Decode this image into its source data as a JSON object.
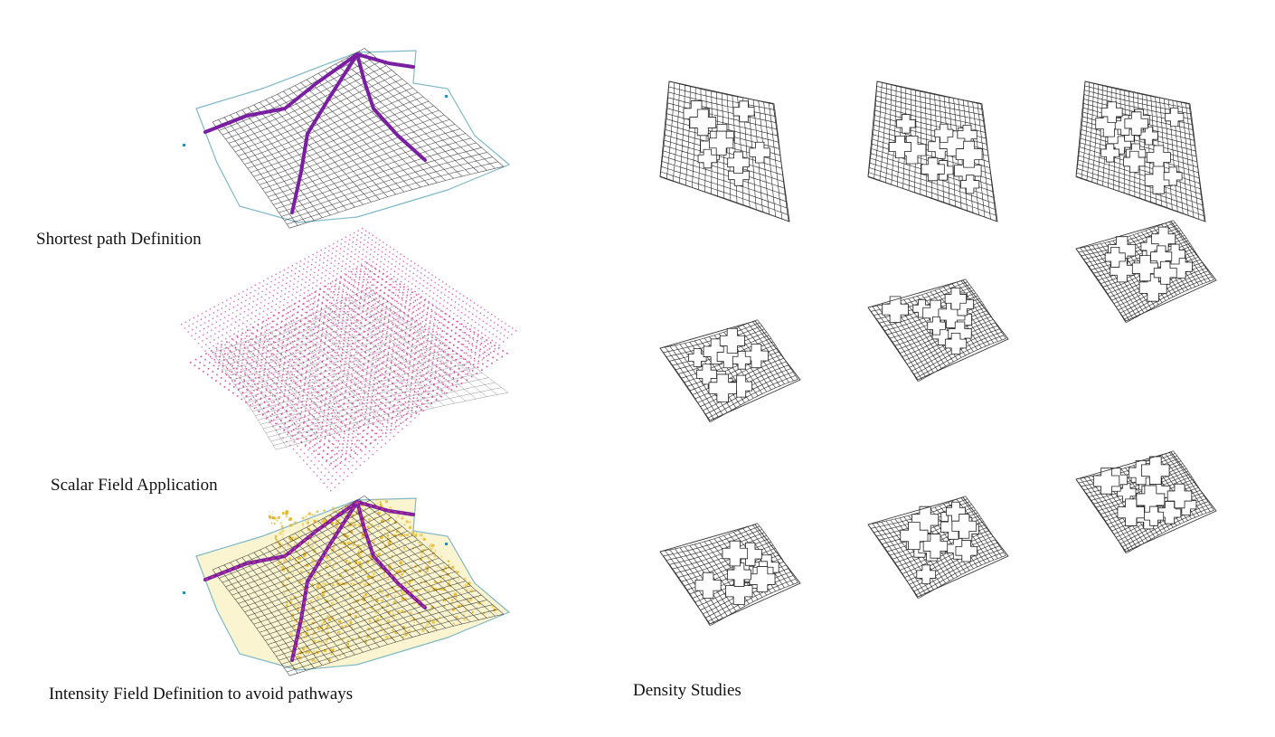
{
  "captions": {
    "shortest_path": "Shortest path Definition",
    "scalar_field": "Scalar Field Application",
    "intensity_field": "Intensity Field Definition to avoid pathways",
    "density": "Density Studies"
  },
  "colors": {
    "path": "#7a1fa2",
    "mesh": "#222222",
    "boundary": "#7fb8c9",
    "scalar_points": "#d23c9a",
    "intensity_points": "#e3b31d",
    "intensity_glow": "#f7efb0",
    "markers": "#2a8fbf"
  },
  "density_studies": {
    "rows": 3,
    "columns": 3
  }
}
